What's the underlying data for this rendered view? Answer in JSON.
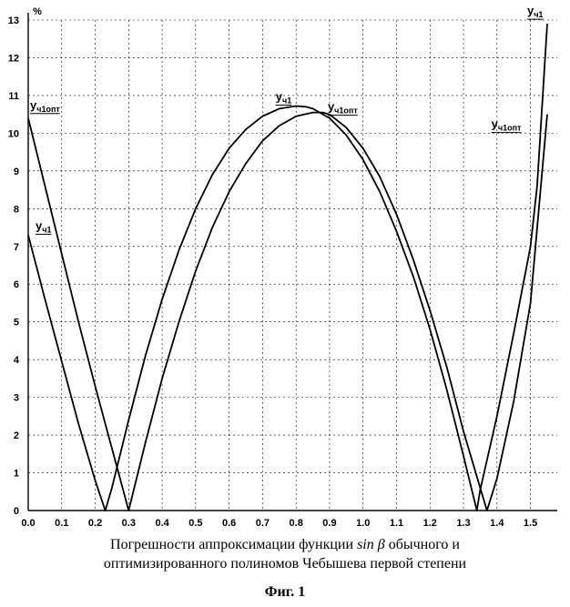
{
  "chart_data": {
    "type": "line",
    "ylabel": "%",
    "xlim": [
      0.0,
      1.58
    ],
    "ylim": [
      0,
      13
    ],
    "x_ticks": [
      "0.0",
      "0.1",
      "0.2",
      "0.3",
      "0.4",
      "0.5",
      "0.6",
      "0.7",
      "0.8",
      "0.9",
      "1.0",
      "1.1",
      "1.2",
      "1.3",
      "1.4",
      "1.5"
    ],
    "y_ticks": [
      "0",
      "1",
      "2",
      "3",
      "4",
      "5",
      "6",
      "7",
      "8",
      "9",
      "10",
      "11",
      "12",
      "13"
    ],
    "grid": true,
    "series": [
      {
        "name": "yч1",
        "x": [
          0.0,
          0.05,
          0.1,
          0.15,
          0.2,
          0.23,
          0.25,
          0.3,
          0.35,
          0.4,
          0.45,
          0.5,
          0.55,
          0.6,
          0.65,
          0.7,
          0.75,
          0.8,
          0.83,
          0.85,
          0.9,
          0.95,
          1.0,
          1.05,
          1.1,
          1.15,
          1.2,
          1.25,
          1.3,
          1.34,
          1.35,
          1.4,
          1.45,
          1.5,
          1.52,
          1.55
        ],
        "y": [
          7.3,
          5.6,
          3.95,
          2.3,
          0.8,
          0.0,
          0.6,
          2.4,
          4.1,
          5.6,
          6.9,
          8.0,
          8.9,
          9.6,
          10.1,
          10.45,
          10.65,
          10.72,
          10.7,
          10.65,
          10.4,
          9.95,
          9.3,
          8.45,
          7.4,
          6.2,
          4.8,
          3.2,
          1.45,
          0.0,
          0.55,
          2.5,
          4.7,
          7.0,
          8.6,
          12.9
        ]
      },
      {
        "name": "yч1опт",
        "x": [
          0.0,
          0.05,
          0.1,
          0.15,
          0.2,
          0.25,
          0.3,
          0.35,
          0.4,
          0.45,
          0.5,
          0.55,
          0.6,
          0.65,
          0.7,
          0.75,
          0.8,
          0.85,
          0.88,
          0.9,
          0.95,
          1.0,
          1.05,
          1.1,
          1.15,
          1.2,
          1.25,
          1.3,
          1.35,
          1.37,
          1.4,
          1.45,
          1.5,
          1.55
        ],
        "y": [
          10.4,
          8.6,
          6.8,
          5.0,
          3.3,
          1.65,
          0.0,
          1.8,
          3.5,
          5.0,
          6.35,
          7.5,
          8.45,
          9.2,
          9.8,
          10.2,
          10.45,
          10.55,
          10.55,
          10.5,
          10.15,
          9.6,
          8.85,
          7.85,
          6.65,
          5.3,
          3.8,
          2.1,
          0.6,
          0.0,
          0.85,
          2.9,
          5.5,
          10.5
        ]
      }
    ],
    "annotations": [
      {
        "base": "y",
        "sub": "ч1опт",
        "x": 0.0,
        "y": 10.4
      },
      {
        "base": "y",
        "sub": "ч1",
        "x": 0.0,
        "y": 7.3
      },
      {
        "base": "y",
        "sub": "ч1",
        "x": 0.75,
        "y": 10.72
      },
      {
        "base": "y",
        "sub": "ч1опт",
        "x": 0.9,
        "y": 10.5
      },
      {
        "base": "y",
        "sub": "ч1опт",
        "x": 1.53,
        "y": 9.8
      },
      {
        "base": "y",
        "sub": "ч1",
        "x": 1.55,
        "y": 12.9
      }
    ]
  },
  "caption": {
    "line1_before": "Погрешности аппроксимации функции ",
    "line1_italic": "sin β",
    "line1_after": " обычного и",
    "line2": "оптимизированного полиномов Чебышева первой степени",
    "figure_label": "Фиг. 1"
  }
}
